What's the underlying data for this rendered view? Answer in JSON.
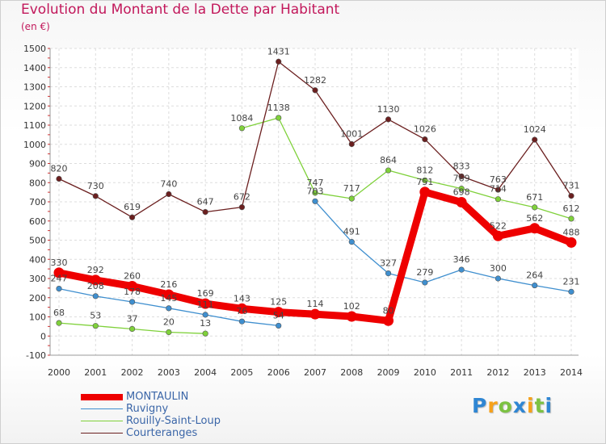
{
  "chart_data": {
    "type": "line",
    "title": "Evolution du Montant de la Dette par Habitant",
    "subtitle": "(en €)",
    "x": [
      "2000",
      "2001",
      "2002",
      "2003",
      "2004",
      "2005",
      "2006",
      "2007",
      "2008",
      "2009",
      "2010",
      "2011",
      "2012",
      "2013",
      "2014"
    ],
    "ylim": [
      -100,
      1500
    ],
    "yticks": [
      -100,
      0,
      100,
      200,
      300,
      400,
      500,
      600,
      700,
      800,
      900,
      1000,
      1100,
      1200,
      1300,
      1400,
      1500
    ],
    "grid": true,
    "legend_position": "bottom-left",
    "series": [
      {
        "name": "MONTAULIN",
        "color": "#ee0000",
        "values": [
          330,
          292,
          260,
          216,
          169,
          143,
          125,
          114,
          102,
          80,
          751,
          698,
          522,
          562,
          488
        ]
      },
      {
        "name": "Ruvigny",
        "color": "#3f8fcf",
        "values": [
          247,
          208,
          178,
          145,
          111,
          76,
          54,
          703,
          491,
          327,
          279,
          346,
          300,
          264,
          231
        ]
      },
      {
        "name": "Rouilly-Saint-Loup",
        "color": "#7fd13a",
        "values": [
          68,
          53,
          37,
          20,
          13,
          1084,
          1138,
          747,
          717,
          864,
          812,
          769,
          714,
          671,
          612
        ]
      },
      {
        "name": "Courteranges",
        "color": "#6b1f1f",
        "values": [
          820,
          730,
          619,
          740,
          647,
          672,
          1431,
          1282,
          1001,
          1130,
          1026,
          833,
          763,
          1024,
          731
        ]
      }
    ]
  },
  "logo": {
    "letters": [
      "P",
      "r",
      "o",
      "x",
      "i",
      "t",
      "i"
    ],
    "colors": [
      "#2f86d3",
      "#f6a11a",
      "#7cc242",
      "#2f86d3",
      "#f6a11a",
      "#7cc242",
      "#2f86d3"
    ]
  }
}
